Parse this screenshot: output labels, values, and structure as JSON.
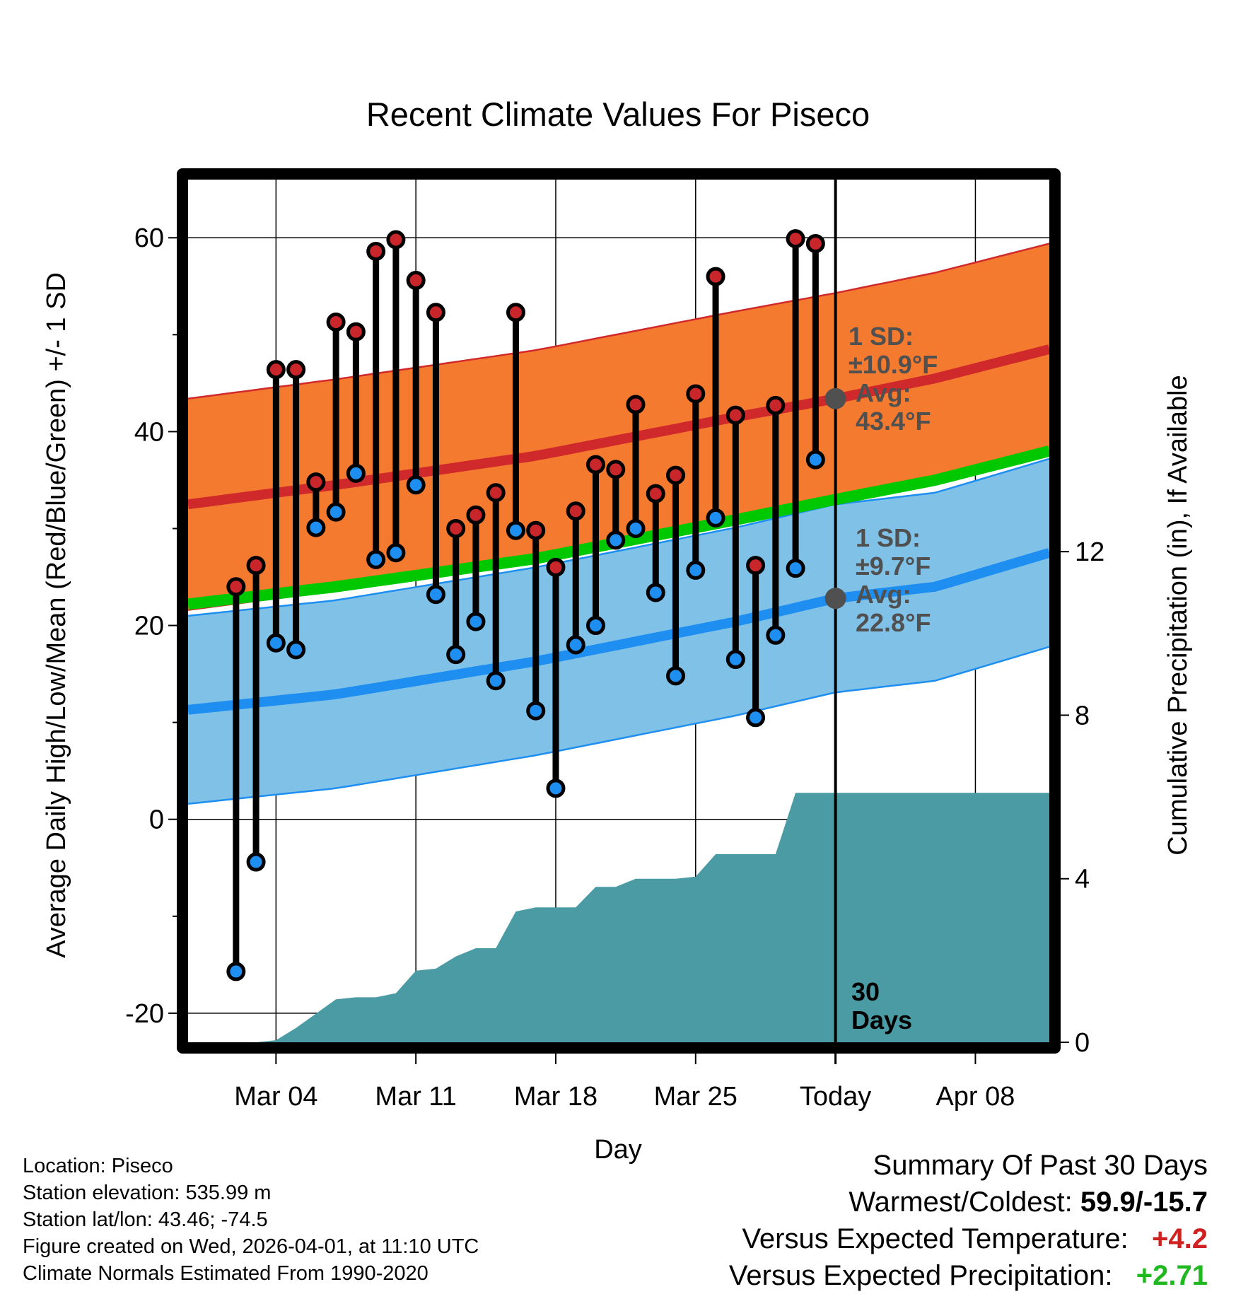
{
  "colors": {
    "high_band": "#f47a30",
    "high_line": "#d0292b",
    "low_band": "#80c1e8",
    "low_line": "#1e8ff0",
    "mean_line": "#00c800",
    "overlap": "#8e1113",
    "precip": "#4a9ba3",
    "high_dot": "#c8262a",
    "low_dot": "#1e8ff0",
    "stats_text": "#505050",
    "summary_warm": "#d02020",
    "summary_precip": "#1fb81f"
  },
  "chart_data": {
    "type": "line",
    "title": "Recent Climate Values For Piseco",
    "xlabel": "Day",
    "ylabel_left": "Average Daily High/Low/Mean (Red/Blue/Green) +/- 1 SD",
    "ylabel_right": "Cumulative Precipitation (in), If Available",
    "x_range_days": [
      -32.4,
      10.7
    ],
    "ylim_left": [
      -23,
      66
    ],
    "ylim_right": [
      0,
      21.1
    ],
    "x_ticks": [
      {
        "day": -28,
        "label": "Mar 04"
      },
      {
        "day": -21,
        "label": "Mar 11"
      },
      {
        "day": -14,
        "label": "Mar 18"
      },
      {
        "day": -7,
        "label": "Mar 25"
      },
      {
        "day": 0,
        "label": "Today"
      },
      {
        "day": 7,
        "label": "Apr 08"
      }
    ],
    "y_ticks_left": [
      {
        "value": -20,
        "label": "-20"
      },
      {
        "value": 0,
        "label": "0"
      },
      {
        "value": 20,
        "label": "20"
      },
      {
        "value": 40,
        "label": "40"
      },
      {
        "value": 60,
        "label": "60"
      }
    ],
    "y_minor_ticks_left": [
      -10,
      10,
      30,
      50
    ],
    "y_ticks_right": [
      {
        "value": 0,
        "label": "0"
      },
      {
        "value": 4,
        "label": "4"
      },
      {
        "value": 8,
        "label": "8"
      },
      {
        "value": 12,
        "label": "12"
      }
    ],
    "normals": {
      "days": [
        -32.4,
        -25,
        -15,
        -5,
        0,
        5,
        10.7
      ],
      "high_mean": [
        32.5,
        34.5,
        37.5,
        41.5,
        43.4,
        45.5,
        48.5
      ],
      "high_sd": 10.9,
      "low_mean": [
        11.3,
        12.9,
        16.3,
        20.4,
        22.8,
        24.0,
        27.5
      ],
      "low_sd": 9.7,
      "mean": [
        22.2,
        24.0,
        26.9,
        30.9,
        33.0,
        35.0,
        38.0
      ]
    },
    "daily": {
      "days": [
        -30,
        -29,
        -28,
        -27,
        -26,
        -25,
        -24,
        -23,
        -22,
        -21,
        -20,
        -19,
        -18,
        -17,
        -16,
        -15,
        -14,
        -13,
        -12,
        -11,
        -10,
        -9,
        -8,
        -7,
        -6,
        -5,
        -4,
        -3,
        -2,
        -1
      ],
      "highs": [
        24.0,
        26.2,
        46.4,
        46.4,
        34.8,
        51.3,
        50.3,
        58.6,
        59.8,
        55.6,
        52.3,
        30.0,
        31.4,
        33.7,
        52.3,
        29.8,
        26.0,
        31.8,
        36.6,
        36.1,
        42.8,
        33.6,
        35.5,
        43.9,
        56.0,
        41.7,
        26.2,
        42.7,
        59.9,
        59.4
      ],
      "lows": [
        -15.7,
        -4.4,
        18.2,
        17.5,
        30.1,
        31.7,
        35.7,
        26.8,
        27.5,
        34.5,
        23.2,
        17.0,
        20.4,
        14.3,
        29.8,
        11.2,
        3.2,
        18.0,
        20.0,
        28.8,
        30.0,
        23.4,
        14.8,
        25.7,
        31.1,
        16.5,
        10.5,
        19.0,
        25.9,
        37.1
      ]
    },
    "precip_cumulative": {
      "days": [
        -29,
        -28,
        -27,
        -26,
        -25,
        -24,
        -23,
        -22,
        -21,
        -20,
        -19,
        -18,
        -17,
        -16,
        -15,
        -14,
        -13,
        -12,
        -11,
        -10,
        -9,
        -8,
        -7,
        -6,
        -5,
        -4,
        -3,
        -2,
        -1,
        0,
        10.7
      ],
      "values": [
        0.0,
        0.05,
        0.35,
        0.7,
        1.05,
        1.1,
        1.1,
        1.2,
        1.75,
        1.8,
        2.1,
        2.3,
        2.3,
        3.2,
        3.3,
        3.3,
        3.3,
        3.8,
        3.8,
        4.0,
        4.0,
        4.0,
        4.05,
        4.6,
        4.6,
        4.6,
        4.6,
        6.1,
        6.1,
        6.1,
        6.1
      ]
    },
    "annotations": {
      "high_sd_label": "1 SD:",
      "high_sd_value": "±10.9°F",
      "high_avg_label": "Avg:",
      "high_avg_value": "43.4°F",
      "low_sd_label": "1 SD:",
      "low_sd_value": "±9.7°F",
      "low_avg_label": "Avg:",
      "low_avg_value": "22.8°F",
      "days_count": "30",
      "days_word": "Days"
    }
  },
  "footer": {
    "location": "Location: Piseco",
    "elevation": "Station elevation: 535.99 m",
    "latlon": "Station lat/lon: 43.46; -74.5",
    "created": "Figure created on Wed, 2026-04-01, at 11:10 UTC",
    "normals": "Climate Normals Estimated From 1990-2020"
  },
  "summary": {
    "title": "Summary Of Past 30 Days",
    "warm_cold_label": "Warmest/Coldest:",
    "warm_cold_value": "59.9/-15.7",
    "temp_label": "Versus Expected Temperature:",
    "temp_value": "+4.2",
    "precip_label": "Versus Expected Precipitation:",
    "precip_value": "+2.71"
  }
}
